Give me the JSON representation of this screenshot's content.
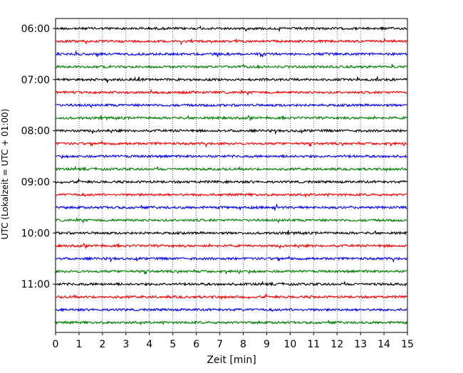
{
  "chart_data": {
    "type": "line",
    "chart_kind": "helicorder seismogram",
    "xlabel": "Zeit  [min]",
    "ylabel": "UTC (Lokalzeit = UTC + 01:00)",
    "xlim": [
      0,
      15
    ],
    "x_ticks": [
      "0",
      "1",
      "2",
      "3",
      "4",
      "5",
      "6",
      "7",
      "8",
      "9",
      "10",
      "11",
      "12",
      "13",
      "14",
      "15"
    ],
    "y_ticks": [
      "06:00",
      "07:00",
      "08:00",
      "09:00",
      "10:00",
      "11:00"
    ],
    "vertical_grid": "dotted, every minute",
    "trace_interval_minutes": 15,
    "traces_per_hour": 4,
    "trace_count": 24,
    "trace_colors": [
      "#000000",
      "#ff0000",
      "#0000ff",
      "#008000"
    ],
    "first_trace_start": "06:00",
    "last_trace_start": "11:45"
  }
}
